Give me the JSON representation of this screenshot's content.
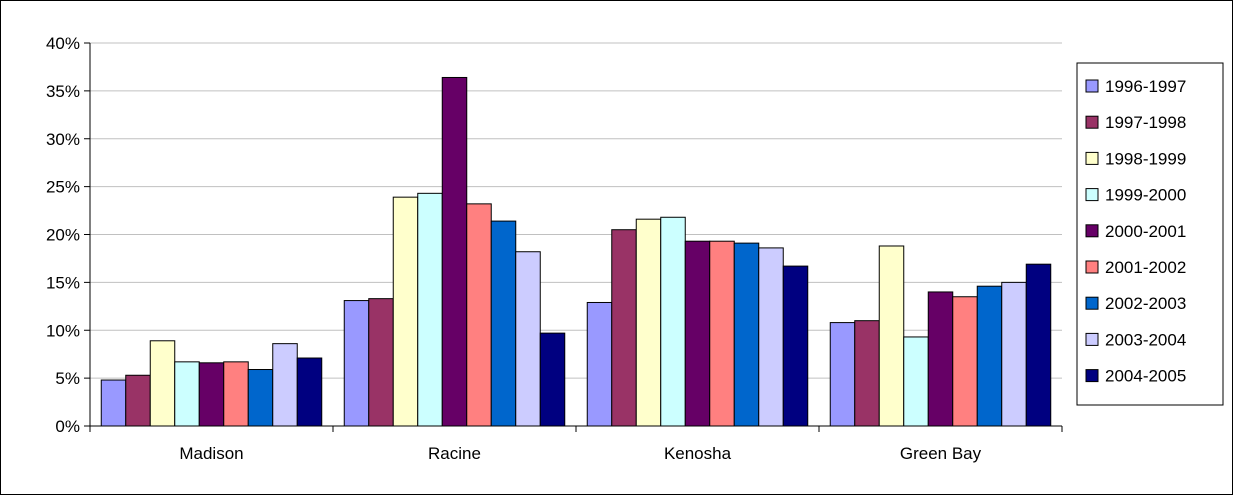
{
  "chart_data": {
    "type": "bar",
    "title": "",
    "xlabel": "",
    "ylabel": "",
    "ylim": [
      0,
      0.4
    ],
    "yticks": [
      0,
      0.05,
      0.1,
      0.15,
      0.2,
      0.25,
      0.3,
      0.35,
      0.4
    ],
    "ytick_labels": [
      "0%",
      "5%",
      "10%",
      "15%",
      "20%",
      "25%",
      "30%",
      "35%",
      "40%"
    ],
    "grid": true,
    "legend_position": "right",
    "categories": [
      "Madison",
      "Racine",
      "Kenosha",
      "Green Bay"
    ],
    "series": [
      {
        "name": "1996-1997",
        "color": "#9999ff",
        "values": [
          0.048,
          0.131,
          0.129,
          0.108
        ]
      },
      {
        "name": "1997-1998",
        "color": "#993366",
        "values": [
          0.053,
          0.133,
          0.205,
          0.11
        ]
      },
      {
        "name": "1998-1999",
        "color": "#ffffcc",
        "values": [
          0.089,
          0.239,
          0.216,
          0.188
        ]
      },
      {
        "name": "1999-2000",
        "color": "#ccffff",
        "values": [
          0.067,
          0.243,
          0.218,
          0.093
        ]
      },
      {
        "name": "2000-2001",
        "color": "#660066",
        "values": [
          0.066,
          0.364,
          0.193,
          0.14
        ]
      },
      {
        "name": "2001-2002",
        "color": "#ff8080",
        "values": [
          0.067,
          0.232,
          0.193,
          0.135
        ]
      },
      {
        "name": "2002-2003",
        "color": "#0066cc",
        "values": [
          0.059,
          0.214,
          0.191,
          0.146
        ]
      },
      {
        "name": "2003-2004",
        "color": "#ccccff",
        "values": [
          0.086,
          0.182,
          0.186,
          0.15
        ]
      },
      {
        "name": "2004-2005",
        "color": "#000080",
        "values": [
          0.071,
          0.097,
          0.167,
          0.169
        ]
      }
    ]
  }
}
